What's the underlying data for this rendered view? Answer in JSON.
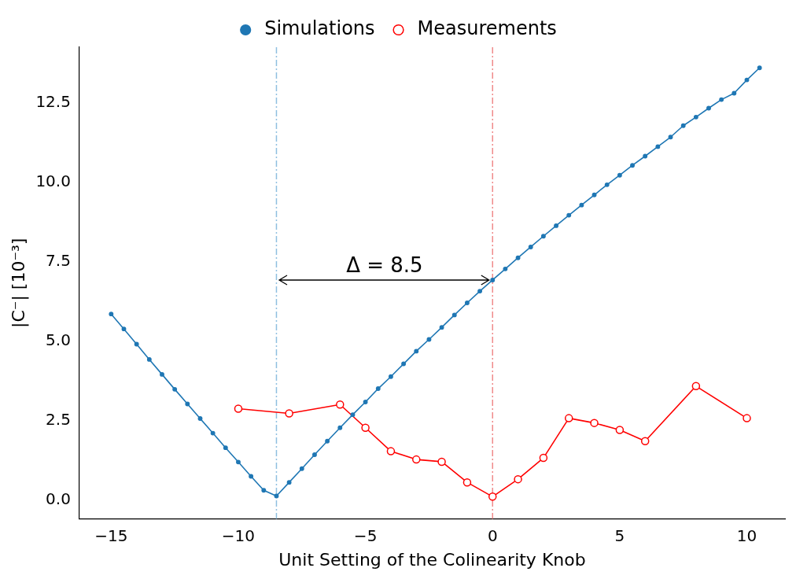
{
  "chart_data": {
    "type": "line",
    "xlabel": "Unit Setting of the Colinearity Knob",
    "ylabel": "|C⁻| [10⁻³]",
    "xlim": [
      -16.25,
      11.5
    ],
    "ylim": [
      -0.6,
      14.25
    ],
    "xticks": [
      {
        "value": -15,
        "label": "−15"
      },
      {
        "value": -10,
        "label": "−10"
      },
      {
        "value": -5,
        "label": "−5"
      },
      0,
      5,
      10
    ],
    "yticks": [
      {
        "value": 0,
        "label": "0.0"
      },
      2.5,
      {
        "value": 5,
        "label": "5.0"
      },
      7.5,
      {
        "value": 10,
        "label": "10.0"
      },
      12.5
    ],
    "grid": false,
    "legend": "top",
    "marker": "circle",
    "line_style": "solid",
    "series": [
      {
        "name": "Simulations",
        "color": "#1f77b4",
        "x": [
          -15,
          -14.5,
          -14,
          -13.5,
          -13,
          -12.5,
          -12,
          -11.5,
          -11,
          -10.5,
          -10,
          -9.5,
          -9,
          -8.5,
          -8,
          -7.5,
          -7,
          -6.5,
          -6,
          -5.5,
          -5,
          -4.5,
          -4,
          -3.5,
          -3,
          -2.5,
          -2,
          -1.5,
          -1,
          -0.5,
          0,
          0.5,
          1,
          1.5,
          2,
          2.5,
          3,
          3.5,
          4,
          4.5,
          5,
          5.5,
          6,
          6.5,
          7,
          7.5,
          8,
          8.5,
          9,
          9.5,
          10,
          10.5
        ],
        "values": [
          5.85,
          5.38,
          4.9,
          4.42,
          3.95,
          3.48,
          3.02,
          2.56,
          2.1,
          1.64,
          1.19,
          0.74,
          0.3,
          0.12,
          0.55,
          0.98,
          1.42,
          1.85,
          2.27,
          2.68,
          3.08,
          3.5,
          3.88,
          4.28,
          4.68,
          5.05,
          5.43,
          5.82,
          6.2,
          6.57,
          6.92,
          7.27,
          7.62,
          7.96,
          8.3,
          8.63,
          8.96,
          9.28,
          9.6,
          9.92,
          10.22,
          10.53,
          10.82,
          11.12,
          11.42,
          11.78,
          12.05,
          12.33,
          12.6,
          12.8,
          13.22,
          13.6
        ]
      },
      {
        "name": "Measurements",
        "color": "#ff0000",
        "x": [
          -10,
          -8,
          -6,
          -5,
          -4,
          -3,
          -2,
          -1,
          0,
          1,
          2,
          3,
          4,
          5,
          6,
          8,
          10
        ],
        "values": [
          2.87,
          2.72,
          3.0,
          2.27,
          1.53,
          1.27,
          1.2,
          0.55,
          0.1,
          0.65,
          1.32,
          2.57,
          2.42,
          2.2,
          1.85,
          3.58,
          2.57
        ]
      }
    ],
    "ref_lines": [
      {
        "axis": "x",
        "value": -8.5,
        "color": "#8fbfe0",
        "line_style": "dashdot"
      },
      {
        "axis": "x",
        "value": 0,
        "color": "#f08a8a",
        "line_style": "dashdot"
      }
    ],
    "annotations": [
      "Δ = 8.5"
    ]
  }
}
